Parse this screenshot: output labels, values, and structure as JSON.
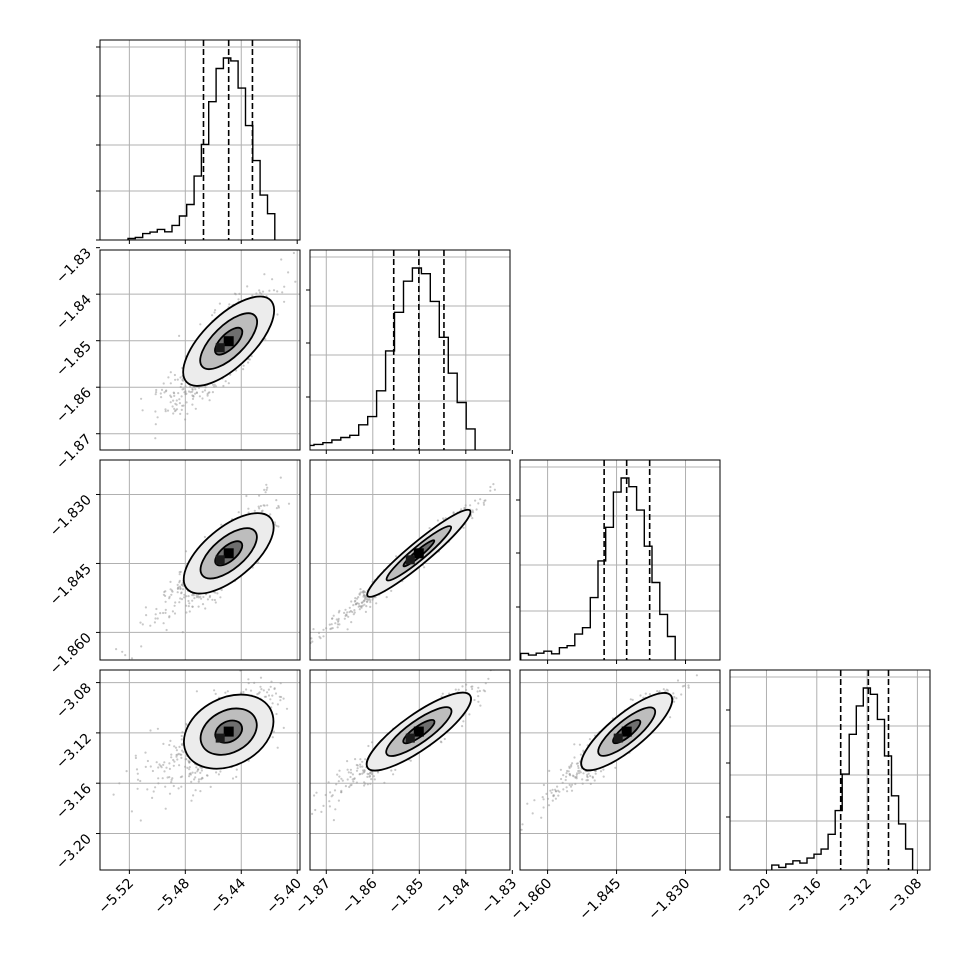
{
  "chart_data": {
    "type": "scatter",
    "plot_kind": "corner",
    "parameters": [
      {
        "name": "",
        "ticks": [
          "−5.52",
          "−5.48",
          "−5.44",
          "−5.40"
        ],
        "tick_values": [
          -5.52,
          -5.48,
          -5.44,
          -5.4
        ],
        "range": [
          -5.541,
          -5.398
        ],
        "quantiles": [
          -5.467,
          -5.449,
          -5.432
        ],
        "mean": -5.449,
        "sd": 0.015
      },
      {
        "name": "",
        "ticks": [
          "−1.87",
          "−1.86",
          "−1.85",
          "−1.84",
          "−1.83"
        ],
        "tick_values": [
          -1.87,
          -1.86,
          -1.85,
          -1.84,
          -1.83
        ],
        "range": [
          -1.8735,
          -1.8305
        ],
        "quantiles": [
          -1.8555,
          -1.8501,
          -1.8447
        ],
        "mean": -1.8501,
        "sd": 0.0055
      },
      {
        "name": "",
        "ticks": [
          "−1.860",
          "−1.845",
          "−1.830"
        ],
        "tick_values": [
          -1.86,
          -1.845,
          -1.83
        ],
        "range": [
          -1.866,
          -1.8225
        ],
        "quantiles": [
          -1.8477,
          -1.8428,
          -1.8378
        ],
        "mean": -1.8428,
        "sd": 0.0048
      },
      {
        "name": "",
        "ticks": [
          "−3.20",
          "−3.16",
          "−3.12",
          "−3.08"
        ],
        "tick_values": [
          -3.2,
          -3.16,
          -3.12,
          -3.08
        ],
        "range": [
          -3.229,
          -3.07
        ],
        "quantiles": [
          -3.141,
          -3.119,
          -3.103
        ],
        "mean": -3.119,
        "sd": 0.016
      }
    ],
    "correlations": [
      [
        1,
        0.8,
        0.8,
        0.55
      ],
      [
        0.8,
        1,
        0.97,
        0.9
      ],
      [
        0.8,
        0.97,
        1,
        0.9
      ],
      [
        0.55,
        0.9,
        0.9,
        1
      ]
    ],
    "histogram_bins": 20,
    "contour_levels": 3,
    "grid": true,
    "legend": "none",
    "colors": {
      "line": "#000000",
      "points": "#9a9a9a",
      "grid": "#b0b0b0",
      "frame": "#000000"
    }
  }
}
